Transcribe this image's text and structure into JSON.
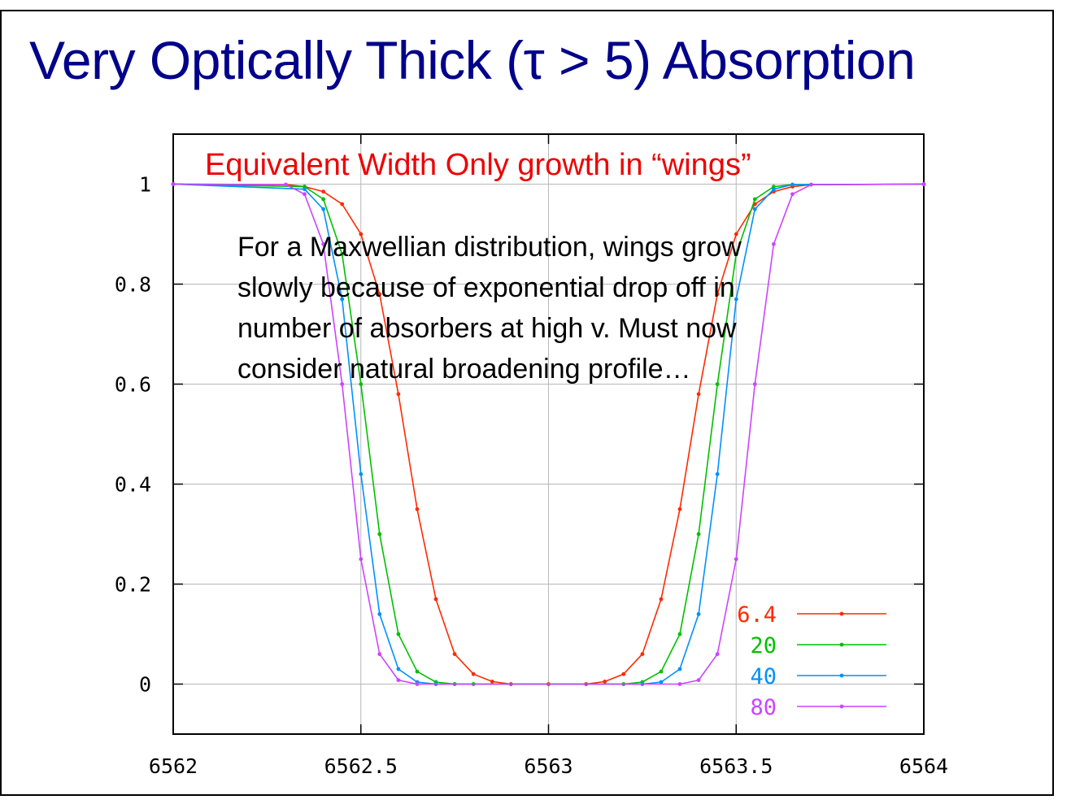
{
  "slide": {
    "title": "Very Optically Thick (τ  > 5) Absorption"
  },
  "chart_data": {
    "type": "line",
    "title": "",
    "xlabel": "",
    "ylabel": "",
    "xlim": [
      6562,
      6564
    ],
    "ylim": [
      -0.1,
      1.1
    ],
    "x_ticks": [
      "6562",
      "6562.5",
      "6563",
      "6563.5",
      "6564"
    ],
    "y_ticks": [
      "0",
      "0.2",
      "0.4",
      "0.6",
      "0.8",
      "1"
    ],
    "grid": true,
    "legend_position": "bottom-right",
    "annotations": [
      "Equivalent Width Only growth in “wings”",
      "For a Maxwellian distribution, wings grow",
      "slowly because of exponential drop off in",
      "number of absorbers at high v.  Must now",
      "consider natural broadening profile…"
    ],
    "series": [
      {
        "name": "6.4",
        "color": "#ff2a00",
        "x": [
          6562.0,
          6562.3,
          6562.35,
          6562.4,
          6562.45,
          6562.5,
          6562.55,
          6562.6,
          6562.65,
          6562.7,
          6562.75,
          6562.8,
          6562.85,
          6562.9,
          6563.0,
          6563.1,
          6563.15,
          6563.2,
          6563.25,
          6563.3,
          6563.35,
          6563.4,
          6563.45,
          6563.5,
          6563.55,
          6563.6,
          6563.65,
          6563.7,
          6564.0
        ],
        "y": [
          1.0,
          0.999,
          0.995,
          0.985,
          0.96,
          0.9,
          0.78,
          0.58,
          0.35,
          0.17,
          0.06,
          0.02,
          0.005,
          0.0,
          0.0,
          0.0,
          0.005,
          0.02,
          0.06,
          0.17,
          0.35,
          0.58,
          0.78,
          0.9,
          0.96,
          0.985,
          0.995,
          0.999,
          1.0
        ]
      },
      {
        "name": "20",
        "color": "#00c000",
        "x": [
          6562.0,
          6562.35,
          6562.4,
          6562.45,
          6562.5,
          6562.55,
          6562.6,
          6562.65,
          6562.7,
          6562.75,
          6562.8,
          6563.2,
          6563.25,
          6563.3,
          6563.35,
          6563.4,
          6563.45,
          6563.5,
          6563.55,
          6563.6,
          6563.65,
          6564.0
        ],
        "y": [
          1.0,
          0.995,
          0.97,
          0.86,
          0.6,
          0.3,
          0.1,
          0.025,
          0.004,
          0.0,
          0.0,
          0.0,
          0.004,
          0.025,
          0.1,
          0.3,
          0.6,
          0.86,
          0.97,
          0.995,
          0.999,
          1.0
        ]
      },
      {
        "name": "40",
        "color": "#0090ff",
        "x": [
          6562.0,
          6562.35,
          6562.4,
          6562.45,
          6562.5,
          6562.55,
          6562.6,
          6562.65,
          6562.7,
          6563.25,
          6563.3,
          6563.35,
          6563.4,
          6563.45,
          6563.5,
          6563.55,
          6563.6,
          6563.65,
          6564.0
        ],
        "y": [
          1.0,
          0.99,
          0.95,
          0.77,
          0.42,
          0.14,
          0.03,
          0.004,
          0.0,
          0.0,
          0.004,
          0.03,
          0.14,
          0.42,
          0.77,
          0.95,
          0.99,
          0.999,
          1.0
        ]
      },
      {
        "name": "80",
        "color": "#cc44ff",
        "x": [
          6562.0,
          6562.3,
          6562.35,
          6562.4,
          6562.45,
          6562.5,
          6562.55,
          6562.6,
          6562.65,
          6563.35,
          6563.4,
          6563.45,
          6563.5,
          6563.55,
          6563.6,
          6563.65,
          6563.7,
          6564.0
        ],
        "y": [
          1.0,
          0.999,
          0.98,
          0.88,
          0.6,
          0.25,
          0.06,
          0.008,
          0.0,
          0.0,
          0.008,
          0.06,
          0.25,
          0.6,
          0.88,
          0.98,
          0.999,
          1.0
        ]
      }
    ]
  }
}
